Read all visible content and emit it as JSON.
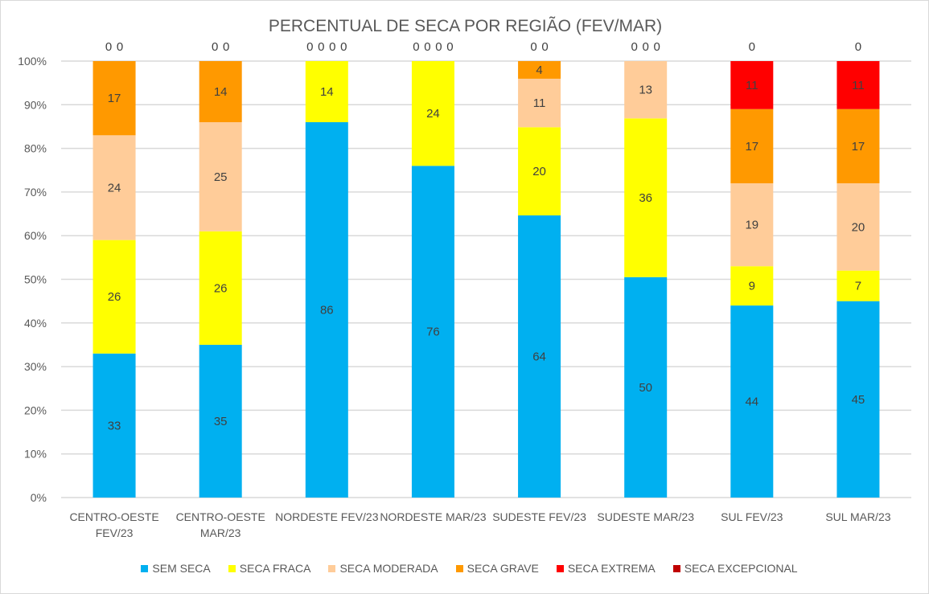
{
  "chart_data": {
    "type": "bar",
    "stacked": "percent",
    "title": "PERCENTUAL DE SECA POR REGIÃO (FEV/MAR)",
    "categories": [
      "CENTRO-OESTE FEV/23",
      "CENTRO-OESTE MAR/23",
      "NORDESTE FEV/23",
      "NORDESTE MAR/23",
      "SUDESTE FEV/23",
      "SUDESTE MAR/23",
      "SUL FEV/23",
      "SUL MAR/23"
    ],
    "series": [
      {
        "name": "SEM SECA",
        "color": "#00b0f0",
        "values": [
          33,
          35,
          86,
          76,
          64,
          50,
          44,
          45
        ]
      },
      {
        "name": "SECA FRACA",
        "color": "#ffff00",
        "values": [
          26,
          26,
          14,
          24,
          20,
          36,
          9,
          7
        ]
      },
      {
        "name": "SECA MODERADA",
        "color": "#ffcc99",
        "values": [
          24,
          25,
          0,
          0,
          11,
          13,
          19,
          20
        ]
      },
      {
        "name": "SECA GRAVE",
        "color": "#ff9900",
        "values": [
          17,
          14,
          0,
          0,
          4,
          0,
          17,
          17
        ]
      },
      {
        "name": "SECA EXTREMA",
        "color": "#ff0000",
        "values": [
          0,
          0,
          0,
          0,
          0,
          0,
          11,
          11
        ]
      },
      {
        "name": "SECA EXCEPCIONAL",
        "color": "#c00000",
        "values": [
          0,
          0,
          0,
          0,
          0,
          0,
          0,
          0
        ]
      }
    ],
    "yticks": [
      "0%",
      "10%",
      "20%",
      "30%",
      "40%",
      "50%",
      "60%",
      "70%",
      "80%",
      "90%",
      "100%"
    ],
    "ylim": [
      0,
      100
    ],
    "grid": true,
    "legend": "bottom"
  }
}
